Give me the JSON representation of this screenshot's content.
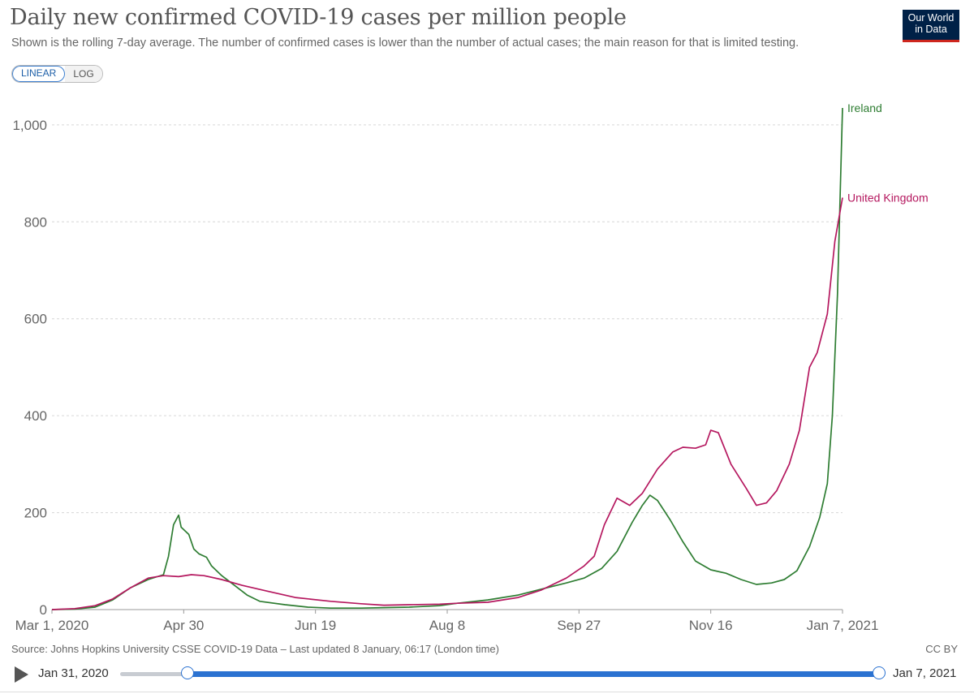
{
  "header": {
    "title": "Daily new confirmed COVID-19 cases per million people",
    "subtitle": "Shown is the rolling 7-day average. The number of confirmed cases is lower than the number of actual cases; the main reason for that is limited testing.",
    "logo_line1": "Our World",
    "logo_line2": "in Data"
  },
  "controls": {
    "linear_label": "LINEAR",
    "log_label": "LOG",
    "selected": "LINEAR"
  },
  "footer": {
    "source": "Source: Johns Hopkins University CSSE COVID-19 Data – Last updated 8 January, 06:17 (London time)",
    "license": "CC BY"
  },
  "timeline": {
    "start_label": "Jan 31, 2020",
    "end_label": "Jan 7, 2021"
  },
  "colors": {
    "ireland": "#2e7d32",
    "uk": "#b5185f",
    "grid": "#d6d6d6",
    "axis": "#666666"
  },
  "chart_data": {
    "type": "line",
    "title": "Daily new confirmed COVID-19 cases per million people",
    "xlabel": "",
    "ylabel": "",
    "x_ticks": [
      "Mar 1, 2020",
      "Apr 30",
      "Jun 19",
      "Aug 8",
      "Sep 27",
      "Nov 16",
      "Jan 7, 2021"
    ],
    "x_range": [
      "2020-03-01",
      "2021-01-07"
    ],
    "ylim": [
      0,
      1040
    ],
    "y_ticks": [
      "0",
      "200",
      "400",
      "600",
      "800",
      "1,000"
    ],
    "y_tick_values": [
      0,
      200,
      400,
      600,
      800,
      1000
    ],
    "grid": true,
    "legend": "inline labels at line ends",
    "series": [
      {
        "name": "Ireland",
        "color": "#2e7d32",
        "points": [
          [
            "2020-03-01",
            0
          ],
          [
            "2020-03-10",
            1
          ],
          [
            "2020-03-18",
            5
          ],
          [
            "2020-03-25",
            20
          ],
          [
            "2020-04-01",
            45
          ],
          [
            "2020-04-08",
            62
          ],
          [
            "2020-04-14",
            72
          ],
          [
            "2020-04-16",
            110
          ],
          [
            "2020-04-18",
            175
          ],
          [
            "2020-04-20",
            195
          ],
          [
            "2020-04-21",
            170
          ],
          [
            "2020-04-24",
            155
          ],
          [
            "2020-04-26",
            125
          ],
          [
            "2020-04-28",
            115
          ],
          [
            "2020-05-01",
            108
          ],
          [
            "2020-05-03",
            90
          ],
          [
            "2020-05-07",
            70
          ],
          [
            "2020-05-12",
            50
          ],
          [
            "2020-05-17",
            30
          ],
          [
            "2020-05-22",
            17
          ],
          [
            "2020-06-01",
            10
          ],
          [
            "2020-06-10",
            5
          ],
          [
            "2020-06-19",
            3
          ],
          [
            "2020-07-01",
            3
          ],
          [
            "2020-07-10",
            4
          ],
          [
            "2020-07-20",
            5
          ],
          [
            "2020-08-01",
            8
          ],
          [
            "2020-08-08",
            13
          ],
          [
            "2020-08-20",
            20
          ],
          [
            "2020-09-01",
            30
          ],
          [
            "2020-09-10",
            42
          ],
          [
            "2020-09-20",
            55
          ],
          [
            "2020-09-27",
            65
          ],
          [
            "2020-10-04",
            85
          ],
          [
            "2020-10-10",
            120
          ],
          [
            "2020-10-16",
            180
          ],
          [
            "2020-10-20",
            215
          ],
          [
            "2020-10-23",
            236
          ],
          [
            "2020-10-26",
            225
          ],
          [
            "2020-10-31",
            185
          ],
          [
            "2020-11-05",
            140
          ],
          [
            "2020-11-10",
            100
          ],
          [
            "2020-11-16",
            82
          ],
          [
            "2020-11-22",
            75
          ],
          [
            "2020-11-28",
            62
          ],
          [
            "2020-12-04",
            52
          ],
          [
            "2020-12-10",
            55
          ],
          [
            "2020-12-15",
            62
          ],
          [
            "2020-12-20",
            80
          ],
          [
            "2020-12-25",
            130
          ],
          [
            "2020-12-29",
            190
          ],
          [
            "2021-01-01",
            260
          ],
          [
            "2021-01-03",
            400
          ],
          [
            "2021-01-05",
            650
          ],
          [
            "2021-01-07",
            1035
          ]
        ],
        "end_label": "Ireland"
      },
      {
        "name": "United Kingdom",
        "color": "#b5185f",
        "points": [
          [
            "2020-03-01",
            0
          ],
          [
            "2020-03-10",
            2
          ],
          [
            "2020-03-18",
            8
          ],
          [
            "2020-03-25",
            22
          ],
          [
            "2020-04-01",
            45
          ],
          [
            "2020-04-08",
            65
          ],
          [
            "2020-04-14",
            70
          ],
          [
            "2020-04-20",
            68
          ],
          [
            "2020-04-25",
            72
          ],
          [
            "2020-04-30",
            70
          ],
          [
            "2020-05-07",
            62
          ],
          [
            "2020-05-15",
            50
          ],
          [
            "2020-05-25",
            38
          ],
          [
            "2020-06-05",
            25
          ],
          [
            "2020-06-19",
            17
          ],
          [
            "2020-07-01",
            12
          ],
          [
            "2020-07-10",
            9
          ],
          [
            "2020-07-20",
            10
          ],
          [
            "2020-08-01",
            11
          ],
          [
            "2020-08-08",
            13
          ],
          [
            "2020-08-20",
            15
          ],
          [
            "2020-09-01",
            25
          ],
          [
            "2020-09-10",
            40
          ],
          [
            "2020-09-20",
            65
          ],
          [
            "2020-09-27",
            90
          ],
          [
            "2020-10-01",
            110
          ],
          [
            "2020-10-05",
            175
          ],
          [
            "2020-10-10",
            230
          ],
          [
            "2020-10-15",
            215
          ],
          [
            "2020-10-20",
            240
          ],
          [
            "2020-10-26",
            290
          ],
          [
            "2020-11-01",
            325
          ],
          [
            "2020-11-05",
            335
          ],
          [
            "2020-11-10",
            333
          ],
          [
            "2020-11-14",
            340
          ],
          [
            "2020-11-16",
            370
          ],
          [
            "2020-11-19",
            365
          ],
          [
            "2020-11-24",
            300
          ],
          [
            "2020-11-30",
            250
          ],
          [
            "2020-12-04",
            215
          ],
          [
            "2020-12-08",
            220
          ],
          [
            "2020-12-12",
            245
          ],
          [
            "2020-12-17",
            300
          ],
          [
            "2020-12-21",
            370
          ],
          [
            "2020-12-25",
            500
          ],
          [
            "2020-12-28",
            530
          ],
          [
            "2021-01-01",
            610
          ],
          [
            "2021-01-04",
            760
          ],
          [
            "2021-01-07",
            850
          ]
        ],
        "end_label": "United Kingdom"
      }
    ]
  }
}
